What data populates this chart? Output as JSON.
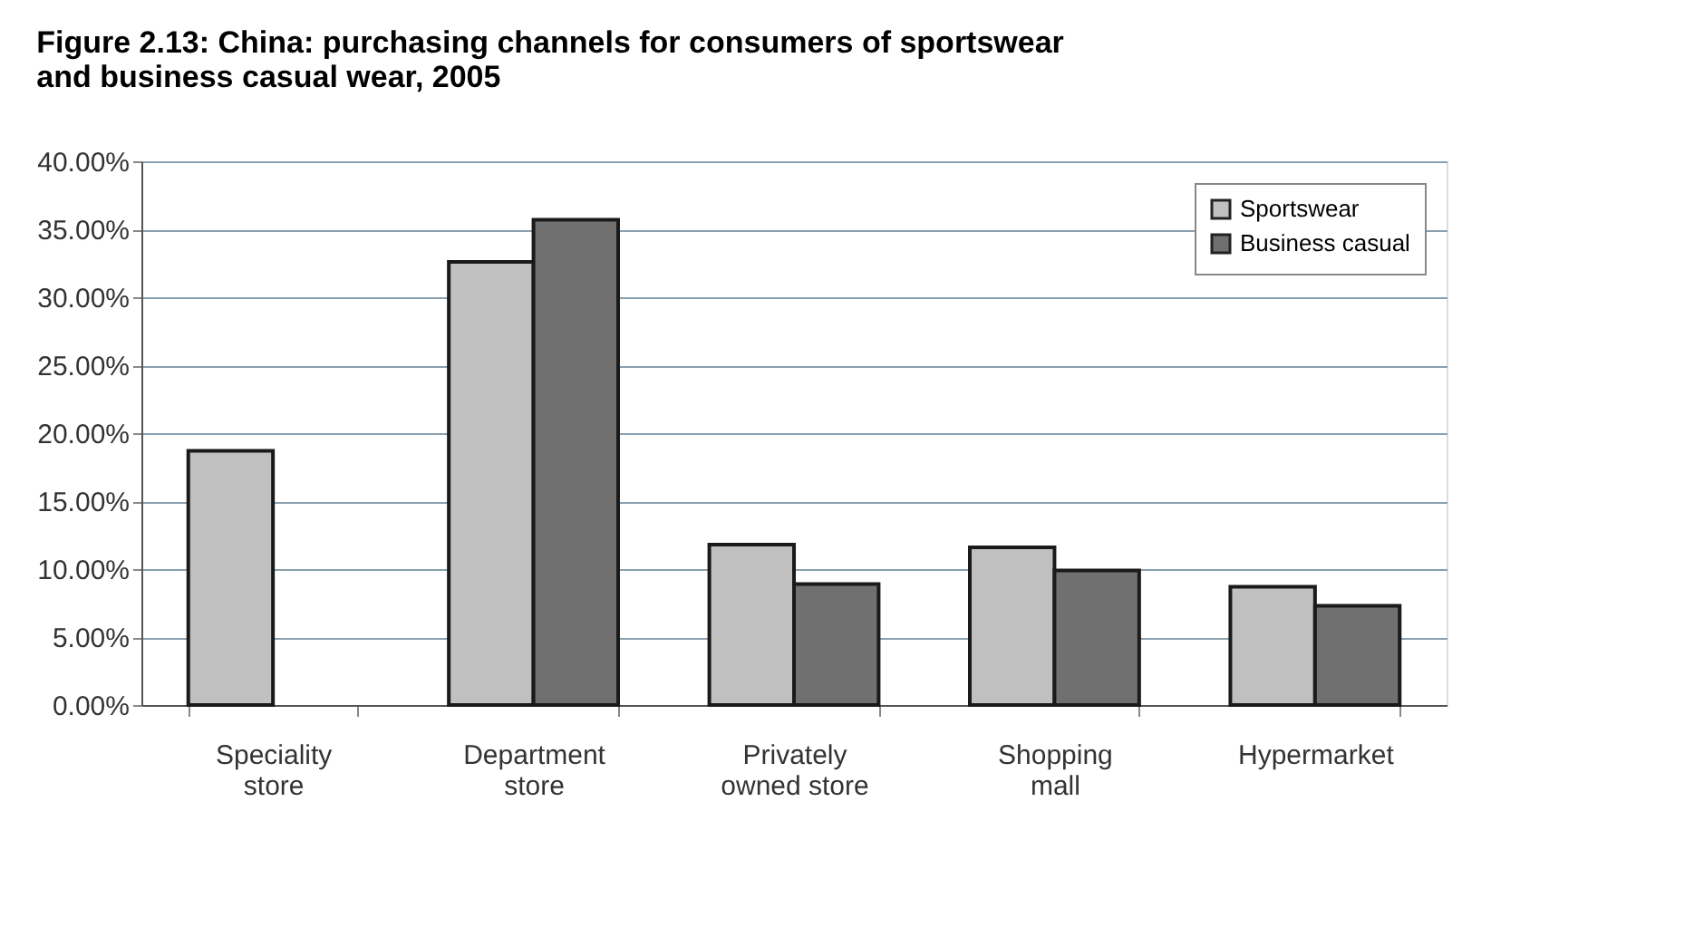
{
  "chart_data": {
    "type": "bar",
    "title": "Figure 2.13: China: purchasing channels for consumers of sportswear and business casual wear, 2005",
    "categories": [
      "Speciality store",
      "Department store",
      "Privately owned store",
      "Shopping mall",
      "Hypermarket"
    ],
    "series": [
      {
        "name": "Sportswear",
        "color": "#c0c0c0",
        "values": [
          18.7,
          32.6,
          11.8,
          11.6,
          8.7
        ]
      },
      {
        "name": "Business casual",
        "color": "#707070",
        "values": [
          null,
          35.7,
          8.9,
          9.9,
          7.3
        ]
      }
    ],
    "ylim": [
      0,
      40
    ],
    "yticks": [
      {
        "value": 0,
        "label": "0.00%"
      },
      {
        "value": 5,
        "label": "5.00%"
      },
      {
        "value": 10,
        "label": "10.00%"
      },
      {
        "value": 15,
        "label": "15.00%"
      },
      {
        "value": 20,
        "label": "20.00%"
      },
      {
        "value": 25,
        "label": "25.00%"
      },
      {
        "value": 30,
        "label": "30.00%"
      },
      {
        "value": 35,
        "label": "35.00%"
      },
      {
        "value": 40,
        "label": "40.00%"
      }
    ],
    "grid": "y",
    "legend": "top right"
  }
}
